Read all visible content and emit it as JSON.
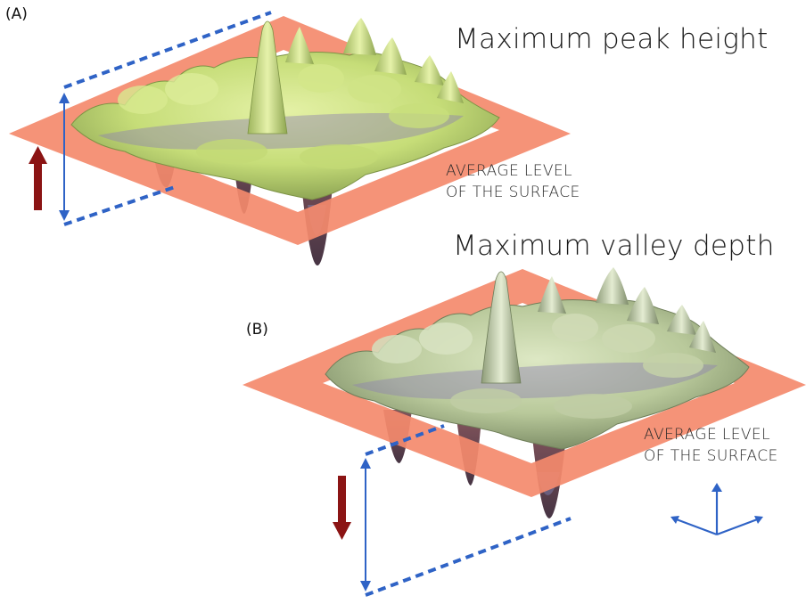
{
  "panels": [
    {
      "letter": "(A)",
      "heading": "Maximum peak height",
      "level_line1": "AVERAGE LEVEL",
      "level_line2": "OF THE SURFACE"
    },
    {
      "letter": "(B)",
      "heading": "Maximum valley depth",
      "level_line1": "AVERAGE LEVEL",
      "level_line2": "OF THE SURFACE"
    }
  ],
  "colors": {
    "plane": "#f48a6c",
    "surface_a": "#c9e07a",
    "surface_b": "#bccd9c",
    "valley_shadow": "#6a5d7e",
    "measure_line": "#2f63c6",
    "direction_arrow": "#8b1414"
  },
  "icons": [
    "up-arrow-icon",
    "down-arrow-icon",
    "axes-icon"
  ]
}
